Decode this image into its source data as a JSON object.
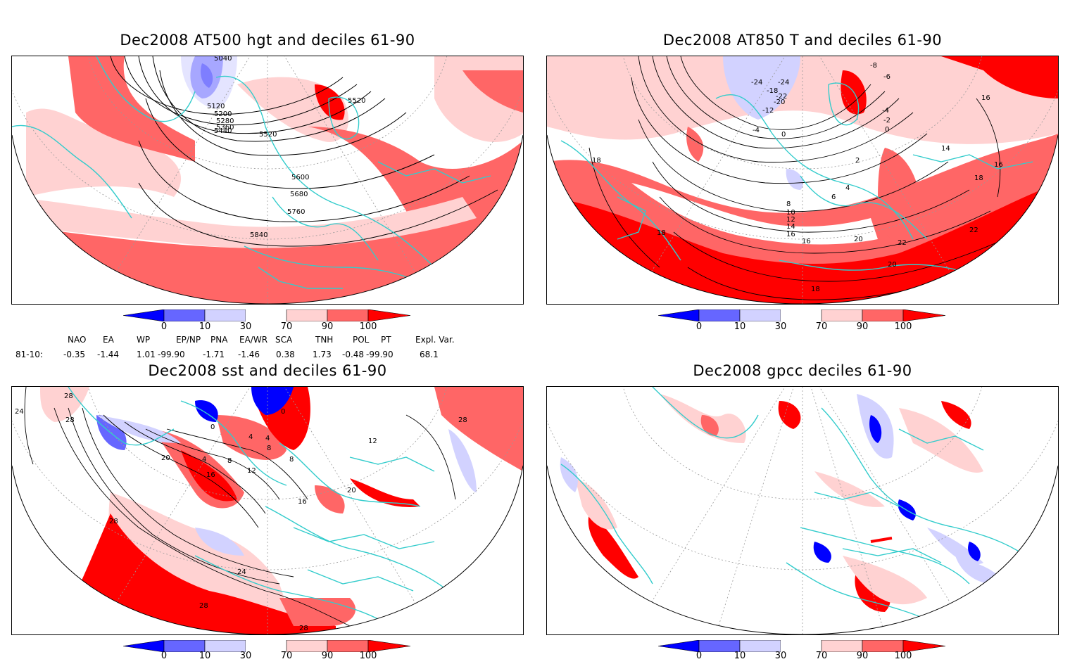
{
  "panels": {
    "hgt500": {
      "title": "Dec2008 AT500 hgt and deciles 61-90",
      "contour_labels": [
        "5040",
        "5120",
        "5200",
        "5280",
        "5360",
        "5440",
        "5520",
        "5520",
        "5600",
        "5680",
        "5760",
        "5840"
      ]
    },
    "t850": {
      "title": "Dec2008 AT850 T and deciles 61-90",
      "contour_labels": [
        "-24",
        "-24",
        "-18",
        "-22",
        "-20",
        "-12",
        "-4",
        "0",
        "-8",
        "-6",
        "-4",
        "-2",
        "0",
        "2",
        "4",
        "6",
        "8",
        "10",
        "12",
        "14",
        "16",
        "16",
        "14",
        "16",
        "18",
        "18",
        "18",
        "20",
        "22",
        "22",
        "20",
        "18",
        "16"
      ]
    },
    "sst": {
      "title": "Dec2008 sst and deciles 61-90",
      "contour_labels": [
        "28",
        "24",
        "28",
        "0",
        "0",
        "4",
        "4",
        "8",
        "8",
        "20",
        "4",
        "8",
        "16",
        "12",
        "16",
        "12",
        "20",
        "28",
        "24",
        "28",
        "28",
        "28"
      ]
    },
    "gpcc": {
      "title": "Dec2008 gpcc deciles 61-90"
    }
  },
  "colorbar": {
    "labels": [
      "0",
      "10",
      "30",
      "70",
      "90",
      "100"
    ],
    "colors": [
      "#0000ff",
      "#6666ff",
      "#d2d2ff",
      "#ffffff",
      "#ffd2d2",
      "#ff6666",
      "#ff0000"
    ]
  },
  "indices": {
    "header": [
      "NAO",
      "EA",
      "WP",
      "EP/NP",
      "PNA",
      "EA/WR",
      "SCA",
      "TNH",
      "POL",
      "PT",
      "Expl. Var."
    ],
    "row_label": "81-10:",
    "values": [
      "-0.35",
      "-1.44",
      "1.01",
      "-99.90",
      "-1.71",
      "-1.46",
      "0.38",
      "1.73",
      "-0.48",
      "-99.90",
      "68.1"
    ]
  },
  "colors": {
    "coast": "#33cccc",
    "contour": "#000000",
    "grid": "#999999"
  }
}
